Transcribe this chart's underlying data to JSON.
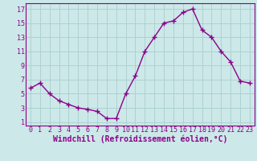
{
  "x": [
    0,
    1,
    2,
    3,
    4,
    5,
    6,
    7,
    8,
    9,
    10,
    11,
    12,
    13,
    14,
    15,
    16,
    17,
    18,
    19,
    20,
    21,
    22,
    23
  ],
  "y": [
    5.8,
    6.5,
    5.0,
    4.0,
    3.5,
    3.0,
    2.8,
    2.5,
    1.5,
    1.5,
    5.0,
    7.5,
    11.0,
    13.0,
    15.0,
    15.3,
    16.5,
    17.0,
    14.0,
    13.0,
    11.0,
    9.5,
    6.8,
    6.5
  ],
  "line_color": "#8b008b",
  "bg_color": "#cce8e8",
  "grid_color": "#aacece",
  "xlabel": "Windchill (Refroidissement éolien,°C)",
  "ylim": [
    1,
    17
  ],
  "xlim": [
    -0.5,
    23.5
  ],
  "yticks": [
    1,
    3,
    5,
    7,
    9,
    11,
    13,
    15,
    17
  ],
  "xticks": [
    0,
    1,
    2,
    3,
    4,
    5,
    6,
    7,
    8,
    9,
    10,
    11,
    12,
    13,
    14,
    15,
    16,
    17,
    18,
    19,
    20,
    21,
    22,
    23
  ],
  "line_width": 1.0,
  "marker_size": 4,
  "xlabel_fontsize": 7,
  "tick_fontsize": 6,
  "spine_color": "#8b008b"
}
